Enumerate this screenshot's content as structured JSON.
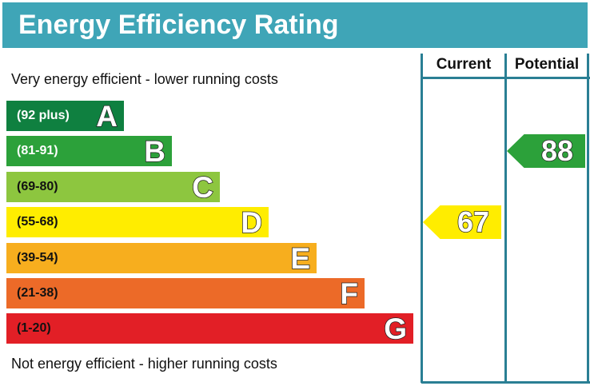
{
  "title": "Energy Efficiency Rating",
  "columns": {
    "current": "Current",
    "potential": "Potential"
  },
  "top_note": "Very energy efficient - lower running costs",
  "bottom_note": "Not energy efficient - higher running costs",
  "chart_data": {
    "type": "bar",
    "categories": [
      "A",
      "B",
      "C",
      "D",
      "E",
      "F",
      "G"
    ],
    "ranges": [
      "(92 plus)",
      "(81-91)",
      "(69-80)",
      "(55-68)",
      "(39-54)",
      "(21-38)",
      "(1-20)"
    ],
    "colors": [
      "#0f8040",
      "#2ca13a",
      "#8dc63f",
      "#ffed00",
      "#f7ae1e",
      "#ec6a28",
      "#e21f26"
    ],
    "current": {
      "value": 67,
      "band": "D",
      "color": "#ffed00"
    },
    "potential": {
      "value": 88,
      "band": "B",
      "color": "#2ca13a"
    }
  }
}
